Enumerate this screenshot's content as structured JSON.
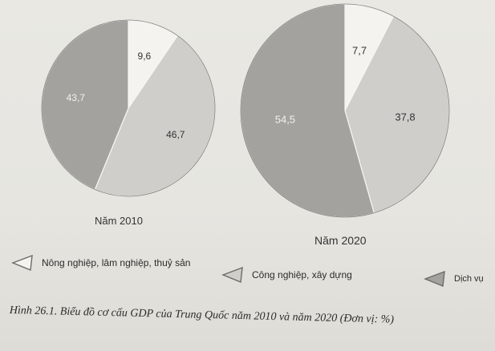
{
  "chart_data": [
    {
      "type": "pie",
      "title": "Năm 2010",
      "categories": [
        "Nông nghiệp, lâm nghiệp, thuỷ sản",
        "Công nghiệp, xây dựng",
        "Dịch vụ"
      ],
      "values": [
        9.6,
        46.7,
        43.7
      ],
      "labels": [
        "9,6",
        "46,7",
        "43,7"
      ]
    },
    {
      "type": "pie",
      "title": "Năm 2020",
      "categories": [
        "Nông nghiệp, lâm nghiệp, thuỷ sản",
        "Công nghiệp, xây dựng",
        "Dịch vụ"
      ],
      "values": [
        7.7,
        37.8,
        54.5
      ],
      "labels": [
        "7,7",
        "37,8",
        "54,5"
      ]
    }
  ],
  "colors": [
    "#f4f3ef",
    "#cfceca",
    "#a3a29e"
  ],
  "legend": [
    {
      "label": "Nông nghiệp, lâm nghiệp, thuỷ sản",
      "icon": "legend-swatch-white"
    },
    {
      "label": "Công nghiệp, xây dựng",
      "icon": "legend-swatch-light-gray"
    },
    {
      "label": "Dịch vụ",
      "icon": "legend-swatch-dark-gray"
    }
  ],
  "caption": "Hình 26.1. Biểu đồ cơ cấu GDP của Trung Quốc năm 2010 và năm 2020 (Đơn vị: %)"
}
